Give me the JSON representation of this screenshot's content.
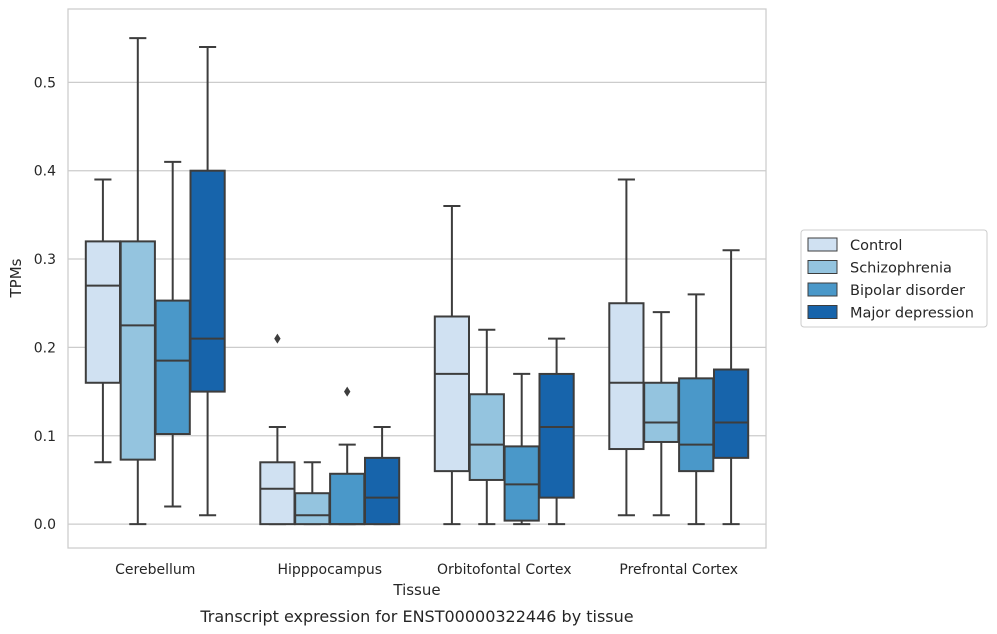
{
  "chart_data": {
    "type": "box",
    "xlabel": "Tissue",
    "ylabel": "TPMs",
    "caption": "Transcript expression for ENST00000322446 by tissue",
    "ylim": [
      -0.027,
      0.583
    ],
    "yticks": [
      0.0,
      0.1,
      0.2,
      0.3,
      0.4,
      0.5
    ],
    "ytick_labels": [
      "0.0",
      "0.1",
      "0.2",
      "0.3",
      "0.4",
      "0.5"
    ],
    "grid": "horizontal",
    "legend_position": "right",
    "categories": [
      "Cerebellum",
      "Hipppocampus",
      "Orbitofontal Cortex",
      "Prefrontal Cortex"
    ],
    "series": [
      {
        "name": "Control",
        "color": "#d0e1f2",
        "boxes": [
          {
            "whisker_low": 0.07,
            "q1": 0.16,
            "median": 0.27,
            "q3": 0.32,
            "whisker_high": 0.39,
            "outliers": []
          },
          {
            "whisker_low": 0.0,
            "q1": 0.0,
            "median": 0.04,
            "q3": 0.07,
            "whisker_high": 0.11,
            "outliers": [
              0.21
            ]
          },
          {
            "whisker_low": 0.0,
            "q1": 0.06,
            "median": 0.17,
            "q3": 0.235,
            "whisker_high": 0.36,
            "outliers": []
          },
          {
            "whisker_low": 0.01,
            "q1": 0.085,
            "median": 0.16,
            "q3": 0.25,
            "whisker_high": 0.39,
            "outliers": []
          }
        ]
      },
      {
        "name": "Schizophrenia",
        "color": "#94c4df",
        "boxes": [
          {
            "whisker_low": 0.0,
            "q1": 0.073,
            "median": 0.225,
            "q3": 0.32,
            "whisker_high": 0.55,
            "outliers": []
          },
          {
            "whisker_low": 0.0,
            "q1": 0.0,
            "median": 0.01,
            "q3": 0.035,
            "whisker_high": 0.07,
            "outliers": []
          },
          {
            "whisker_low": 0.0,
            "q1": 0.05,
            "median": 0.09,
            "q3": 0.147,
            "whisker_high": 0.22,
            "outliers": []
          },
          {
            "whisker_low": 0.01,
            "q1": 0.093,
            "median": 0.115,
            "q3": 0.16,
            "whisker_high": 0.24,
            "outliers": []
          }
        ]
      },
      {
        "name": "Bipolar disorder",
        "color": "#4a98c9",
        "boxes": [
          {
            "whisker_low": 0.02,
            "q1": 0.102,
            "median": 0.185,
            "q3": 0.253,
            "whisker_high": 0.41,
            "outliers": []
          },
          {
            "whisker_low": 0.0,
            "q1": 0.0,
            "median": 0.0,
            "q3": 0.057,
            "whisker_high": 0.09,
            "outliers": [
              0.15
            ]
          },
          {
            "whisker_low": 0.0,
            "q1": 0.004,
            "median": 0.045,
            "q3": 0.088,
            "whisker_high": 0.17,
            "outliers": []
          },
          {
            "whisker_low": 0.0,
            "q1": 0.06,
            "median": 0.09,
            "q3": 0.165,
            "whisker_high": 0.26,
            "outliers": []
          }
        ]
      },
      {
        "name": "Major depression",
        "color": "#1764ab",
        "boxes": [
          {
            "whisker_low": 0.01,
            "q1": 0.15,
            "median": 0.21,
            "q3": 0.4,
            "whisker_high": 0.54,
            "outliers": []
          },
          {
            "whisker_low": 0.0,
            "q1": 0.0,
            "median": 0.03,
            "q3": 0.075,
            "whisker_high": 0.11,
            "outliers": []
          },
          {
            "whisker_low": 0.0,
            "q1": 0.03,
            "median": 0.11,
            "q3": 0.17,
            "whisker_high": 0.21,
            "outliers": []
          },
          {
            "whisker_low": 0.0,
            "q1": 0.075,
            "median": 0.115,
            "q3": 0.175,
            "whisker_high": 0.31,
            "outliers": []
          }
        ]
      }
    ]
  }
}
